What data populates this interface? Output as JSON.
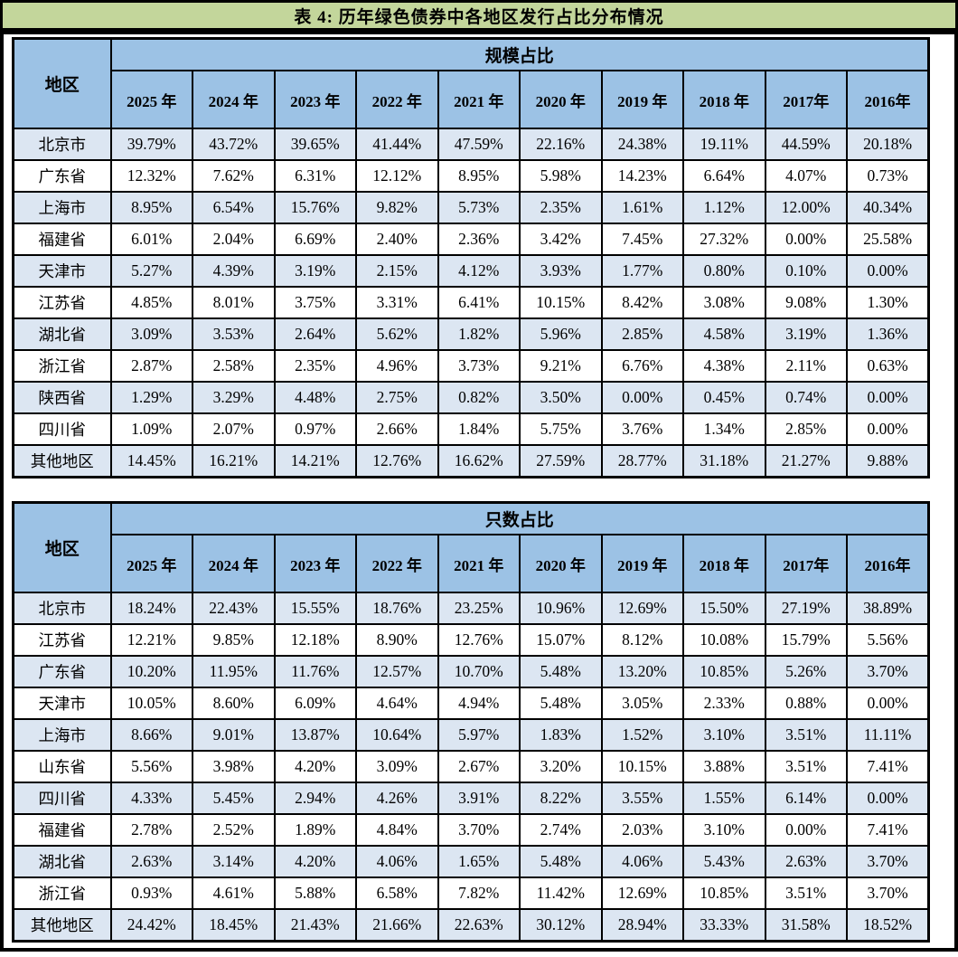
{
  "title": "表 4:  历年绿色债券中各地区发行占比分布情况",
  "colors": {
    "title_bar_bg": "#C3D69B",
    "header_bg": "#9CC2E5",
    "striped_row_bg": "#DCE6F2",
    "border": "#000000",
    "text": "#000000"
  },
  "tables": [
    {
      "name": "scale-share-table",
      "region_header": "地区",
      "group_header": "规模占比",
      "years": [
        "2025 年",
        "2024 年",
        "2023 年",
        "2022 年",
        "2021 年",
        "2020 年",
        "2019 年",
        "2018 年",
        "2017年",
        "2016年"
      ],
      "rows": [
        {
          "region": "北京市",
          "values": [
            "39.79%",
            "43.72%",
            "39.65%",
            "41.44%",
            "47.59%",
            "22.16%",
            "24.38%",
            "19.11%",
            "44.59%",
            "20.18%"
          ]
        },
        {
          "region": "广东省",
          "values": [
            "12.32%",
            "7.62%",
            "6.31%",
            "12.12%",
            "8.95%",
            "5.98%",
            "14.23%",
            "6.64%",
            "4.07%",
            "0.73%"
          ]
        },
        {
          "region": "上海市",
          "values": [
            "8.95%",
            "6.54%",
            "15.76%",
            "9.82%",
            "5.73%",
            "2.35%",
            "1.61%",
            "1.12%",
            "12.00%",
            "40.34%"
          ]
        },
        {
          "region": "福建省",
          "values": [
            "6.01%",
            "2.04%",
            "6.69%",
            "2.40%",
            "2.36%",
            "3.42%",
            "7.45%",
            "27.32%",
            "0.00%",
            "25.58%"
          ]
        },
        {
          "region": "天津市",
          "values": [
            "5.27%",
            "4.39%",
            "3.19%",
            "2.15%",
            "4.12%",
            "3.93%",
            "1.77%",
            "0.80%",
            "0.10%",
            "0.00%"
          ]
        },
        {
          "region": "江苏省",
          "values": [
            "4.85%",
            "8.01%",
            "3.75%",
            "3.31%",
            "6.41%",
            "10.15%",
            "8.42%",
            "3.08%",
            "9.08%",
            "1.30%"
          ]
        },
        {
          "region": "湖北省",
          "values": [
            "3.09%",
            "3.53%",
            "2.64%",
            "5.62%",
            "1.82%",
            "5.96%",
            "2.85%",
            "4.58%",
            "3.19%",
            "1.36%"
          ]
        },
        {
          "region": "浙江省",
          "values": [
            "2.87%",
            "2.58%",
            "2.35%",
            "4.96%",
            "3.73%",
            "9.21%",
            "6.76%",
            "4.38%",
            "2.11%",
            "0.63%"
          ]
        },
        {
          "region": "陕西省",
          "values": [
            "1.29%",
            "3.29%",
            "4.48%",
            "2.75%",
            "0.82%",
            "3.50%",
            "0.00%",
            "0.45%",
            "0.74%",
            "0.00%"
          ]
        },
        {
          "region": "四川省",
          "values": [
            "1.09%",
            "2.07%",
            "0.97%",
            "2.66%",
            "1.84%",
            "5.75%",
            "3.76%",
            "1.34%",
            "2.85%",
            "0.00%"
          ]
        },
        {
          "region": "其他地区",
          "values": [
            "14.45%",
            "16.21%",
            "14.21%",
            "12.76%",
            "16.62%",
            "27.59%",
            "28.77%",
            "31.18%",
            "21.27%",
            "9.88%"
          ]
        }
      ]
    },
    {
      "name": "count-share-table",
      "region_header": "地区",
      "group_header": "只数占比",
      "years": [
        "2025 年",
        "2024 年",
        "2023 年",
        "2022 年",
        "2021 年",
        "2020 年",
        "2019 年",
        "2018 年",
        "2017年",
        "2016年"
      ],
      "rows": [
        {
          "region": "北京市",
          "values": [
            "18.24%",
            "22.43%",
            "15.55%",
            "18.76%",
            "23.25%",
            "10.96%",
            "12.69%",
            "15.50%",
            "27.19%",
            "38.89%"
          ]
        },
        {
          "region": "江苏省",
          "values": [
            "12.21%",
            "9.85%",
            "12.18%",
            "8.90%",
            "12.76%",
            "15.07%",
            "8.12%",
            "10.08%",
            "15.79%",
            "5.56%"
          ]
        },
        {
          "region": "广东省",
          "values": [
            "10.20%",
            "11.95%",
            "11.76%",
            "12.57%",
            "10.70%",
            "5.48%",
            "13.20%",
            "10.85%",
            "5.26%",
            "3.70%"
          ]
        },
        {
          "region": "天津市",
          "values": [
            "10.05%",
            "8.60%",
            "6.09%",
            "4.64%",
            "4.94%",
            "5.48%",
            "3.05%",
            "2.33%",
            "0.88%",
            "0.00%"
          ]
        },
        {
          "region": "上海市",
          "values": [
            "8.66%",
            "9.01%",
            "13.87%",
            "10.64%",
            "5.97%",
            "1.83%",
            "1.52%",
            "3.10%",
            "3.51%",
            "11.11%"
          ]
        },
        {
          "region": "山东省",
          "values": [
            "5.56%",
            "3.98%",
            "4.20%",
            "3.09%",
            "2.67%",
            "3.20%",
            "10.15%",
            "3.88%",
            "3.51%",
            "7.41%"
          ]
        },
        {
          "region": "四川省",
          "values": [
            "4.33%",
            "5.45%",
            "2.94%",
            "4.26%",
            "3.91%",
            "8.22%",
            "3.55%",
            "1.55%",
            "6.14%",
            "0.00%"
          ]
        },
        {
          "region": "福建省",
          "values": [
            "2.78%",
            "2.52%",
            "1.89%",
            "4.84%",
            "3.70%",
            "2.74%",
            "2.03%",
            "3.10%",
            "0.00%",
            "7.41%"
          ]
        },
        {
          "region": "湖北省",
          "values": [
            "2.63%",
            "3.14%",
            "4.20%",
            "4.06%",
            "1.65%",
            "5.48%",
            "4.06%",
            "5.43%",
            "2.63%",
            "3.70%"
          ]
        },
        {
          "region": "浙江省",
          "values": [
            "0.93%",
            "4.61%",
            "5.88%",
            "6.58%",
            "7.82%",
            "11.42%",
            "12.69%",
            "10.85%",
            "3.51%",
            "3.70%"
          ]
        },
        {
          "region": "其他地区",
          "values": [
            "24.42%",
            "18.45%",
            "21.43%",
            "21.66%",
            "22.63%",
            "30.12%",
            "28.94%",
            "33.33%",
            "31.58%",
            "18.52%"
          ]
        }
      ]
    }
  ],
  "chart_data": {
    "type": "table",
    "title": "表 4:  历年绿色债券中各地区发行占比分布情况",
    "note": "Two sub-tables: 规模占比 (share by issuance scale) and 只数占比 (share by number of bonds), columns are years 2025-2016, values are percentages per region."
  }
}
